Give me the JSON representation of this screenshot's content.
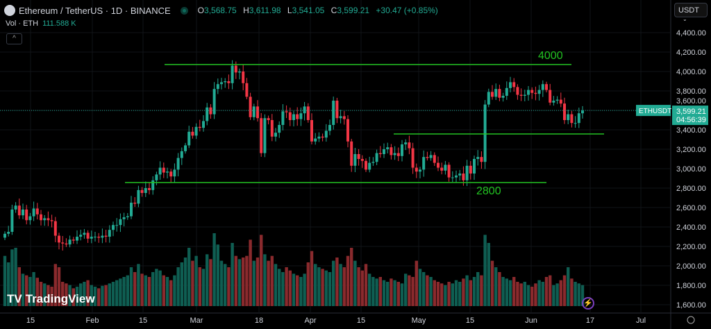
{
  "header": {
    "symbol": "Ethereum / TetherUS · 1D · BINANCE",
    "open": "3,568.75",
    "high": "3,611.98",
    "low": "3,541.05",
    "close": "3,599.21",
    "change": "+30.47 (+0.85%)",
    "o_label": "O",
    "h_label": "H",
    "l_label": "L",
    "c_label": "C",
    "vol_label": "Vol · ETH",
    "vol_value": "111.588 K"
  },
  "currency_button": "USDT",
  "price_tag": {
    "symbol": "ETHUSDT",
    "price": "3,599.21",
    "countdown": "04:56:39"
  },
  "watermark": "TradingView",
  "colors": {
    "up": "#22ab94",
    "down": "#f23645",
    "vol_up": "#0f5e52",
    "vol_down": "#8a2a2d",
    "line": "#22c322",
    "background": "#000000"
  },
  "chart_data": {
    "type": "candlestick",
    "start_date": "2024-01-08",
    "y_ticks": [
      "4,400.00",
      "4,200.00",
      "4,000.00",
      "3,800.00",
      "3,600.00",
      "3,400.00",
      "3,200.00",
      "3,000.00",
      "2,800.00",
      "2,600.00",
      "2,400.00",
      "2,200.00",
      "2,000.00",
      "1,800.00",
      "1,600.00"
    ],
    "x_ticks": [
      "15",
      "Feb",
      "15",
      "Mar",
      "18",
      "Apr",
      "15",
      "May",
      "15",
      "Jun",
      "17",
      "Jul"
    ],
    "closes": [
      2330,
      2350,
      2580,
      2620,
      2520,
      2580,
      2470,
      2510,
      2590,
      2530,
      2470,
      2490,
      2470,
      2460,
      2310,
      2240,
      2230,
      2220,
      2270,
      2260,
      2300,
      2320,
      2340,
      2280,
      2300,
      2300,
      2290,
      2310,
      2300,
      2370,
      2420,
      2420,
      2480,
      2500,
      2510,
      2650,
      2640,
      2780,
      2750,
      2800,
      2780,
      2880,
      2940,
      3010,
      2960,
      2970,
      2920,
      2990,
      3110,
      3180,
      3240,
      3380,
      3340,
      3430,
      3420,
      3490,
      3630,
      3560,
      3820,
      3870,
      3890,
      3900,
      3880,
      4060,
      3990,
      4000,
      3880,
      3740,
      3530,
      3640,
      3520,
      3160,
      3520,
      3500,
      3330,
      3370,
      3450,
      3590,
      3580,
      3500,
      3560,
      3510,
      3570,
      3640,
      3500,
      3280,
      3310,
      3330,
      3320,
      3390,
      3450,
      3700,
      3520,
      3540,
      3510,
      3280,
      3030,
      3150,
      3100,
      3080,
      2990,
      3060,
      3070,
      3160,
      3150,
      3200,
      3220,
      3140,
      3160,
      3130,
      3250,
      3270,
      3210,
      3010,
      2970,
      2990,
      3120,
      3110,
      3140,
      3060,
      3010,
      2980,
      3040,
      2910,
      2910,
      2930,
      2950,
      2880,
      3030,
      2950,
      3100,
      3120,
      3070,
      3660,
      3790,
      3740,
      3820,
      3730,
      3750,
      3830,
      3890,
      3840,
      3760,
      3750,
      3760,
      3810,
      3780,
      3770,
      3810,
      3870,
      3810,
      3680,
      3700,
      3710,
      3670,
      3500,
      3560,
      3470,
      3470,
      3570,
      3599
    ],
    "volumes_k": [
      620,
      540,
      700,
      720,
      480,
      400,
      380,
      360,
      420,
      350,
      300,
      280,
      260,
      240,
      520,
      480,
      300,
      280,
      260,
      220,
      240,
      280,
      300,
      320,
      260,
      240,
      220,
      250,
      260,
      280,
      300,
      320,
      340,
      360,
      380,
      480,
      420,
      520,
      400,
      380,
      360,
      420,
      460,
      440,
      380,
      360,
      320,
      380,
      480,
      540,
      600,
      720,
      560,
      620,
      480,
      460,
      640,
      580,
      900,
      760,
      560,
      520,
      480,
      780,
      620,
      580,
      600,
      620,
      820,
      560,
      600,
      880,
      640,
      560,
      620,
      520,
      460,
      420,
      480,
      440,
      400,
      380,
      360,
      400,
      540,
      680,
      520,
      480,
      460,
      440,
      420,
      560,
      600,
      520,
      480,
      620,
      720,
      560,
      480,
      440,
      520,
      400,
      360,
      340,
      360,
      320,
      300,
      340,
      320,
      300,
      280,
      400,
      380,
      360,
      560,
      460,
      420,
      380,
      360,
      320,
      300,
      280,
      260,
      300,
      280,
      320,
      300,
      340,
      380,
      320,
      360,
      420,
      380,
      880,
      780,
      560,
      480,
      420,
      360,
      340,
      320,
      360,
      300,
      280,
      300,
      260,
      240,
      280,
      320,
      300,
      360,
      380,
      260,
      280,
      320,
      380,
      480,
      340,
      300,
      280,
      260
    ],
    "levels": [
      {
        "label": "4000",
        "price": 4071
      },
      {
        "label": "2800",
        "price": 2857
      },
      {
        "label": "",
        "price": 3357
      }
    ],
    "ylim": [
      1600,
      4400
    ],
    "grid": true
  }
}
